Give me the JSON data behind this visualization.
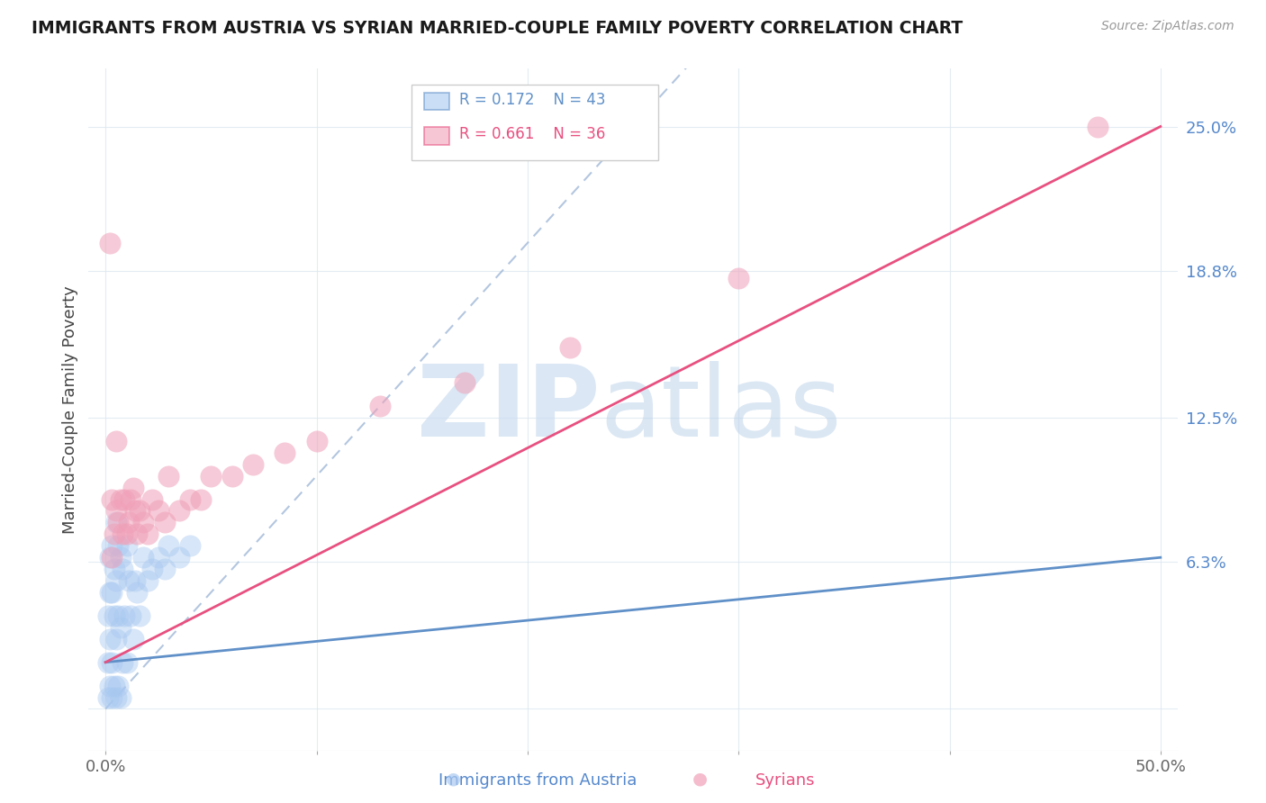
{
  "title": "IMMIGRANTS FROM AUSTRIA VS SYRIAN MARRIED-COUPLE FAMILY POVERTY CORRELATION CHART",
  "source": "Source: ZipAtlas.com",
  "ylabel": "Married-Couple Family Poverty",
  "xticks": [
    0.0,
    0.1,
    0.2,
    0.3,
    0.4,
    0.5
  ],
  "xticklabels": [
    "0.0%",
    "",
    "",
    "",
    "",
    "50.0%"
  ],
  "ytick_positions": [
    0.0,
    0.063,
    0.125,
    0.188,
    0.25
  ],
  "ytick_labels": [
    "",
    "6.3%",
    "12.5%",
    "18.8%",
    "25.0%"
  ],
  "legend_r1": "R = 0.172",
  "legend_n1": "N = 43",
  "legend_r2": "R = 0.661",
  "legend_n2": "N = 36",
  "blue_color": "#a8c8f0",
  "pink_color": "#f0a0b8",
  "blue_line_color": "#6090c8",
  "pink_line_color": "#e85080",
  "dashed_line_color": "#a0b8d8",
  "austria_x": [
    0.001,
    0.001,
    0.001,
    0.002,
    0.002,
    0.002,
    0.002,
    0.003,
    0.003,
    0.003,
    0.003,
    0.004,
    0.004,
    0.004,
    0.005,
    0.005,
    0.005,
    0.005,
    0.006,
    0.006,
    0.006,
    0.007,
    0.007,
    0.007,
    0.008,
    0.008,
    0.009,
    0.01,
    0.01,
    0.011,
    0.012,
    0.013,
    0.014,
    0.015,
    0.016,
    0.018,
    0.02,
    0.022,
    0.025,
    0.028,
    0.03,
    0.035,
    0.04
  ],
  "austria_y": [
    0.04,
    0.02,
    0.005,
    0.065,
    0.05,
    0.03,
    0.01,
    0.07,
    0.05,
    0.02,
    0.005,
    0.06,
    0.04,
    0.01,
    0.08,
    0.055,
    0.03,
    0.005,
    0.07,
    0.04,
    0.01,
    0.065,
    0.035,
    0.005,
    0.06,
    0.02,
    0.04,
    0.07,
    0.02,
    0.055,
    0.04,
    0.03,
    0.055,
    0.05,
    0.04,
    0.065,
    0.055,
    0.06,
    0.065,
    0.06,
    0.07,
    0.065,
    0.07
  ],
  "syria_x": [
    0.002,
    0.003,
    0.003,
    0.004,
    0.005,
    0.005,
    0.006,
    0.007,
    0.008,
    0.009,
    0.01,
    0.011,
    0.012,
    0.013,
    0.014,
    0.015,
    0.016,
    0.018,
    0.02,
    0.022,
    0.025,
    0.028,
    0.03,
    0.035,
    0.04,
    0.045,
    0.05,
    0.06,
    0.07,
    0.085,
    0.1,
    0.13,
    0.17,
    0.22,
    0.3,
    0.47
  ],
  "syria_y": [
    0.2,
    0.09,
    0.065,
    0.075,
    0.115,
    0.085,
    0.08,
    0.09,
    0.075,
    0.09,
    0.075,
    0.08,
    0.09,
    0.095,
    0.085,
    0.075,
    0.085,
    0.08,
    0.075,
    0.09,
    0.085,
    0.08,
    0.1,
    0.085,
    0.09,
    0.09,
    0.1,
    0.1,
    0.105,
    0.11,
    0.115,
    0.13,
    0.14,
    0.155,
    0.185,
    0.25
  ],
  "blue_trend": [
    0.0,
    0.5,
    0.02,
    0.065
  ],
  "pink_trend": [
    0.0,
    0.5,
    0.02,
    0.25
  ],
  "dashed_trend": [
    0.0,
    0.5,
    0.0,
    0.5
  ]
}
